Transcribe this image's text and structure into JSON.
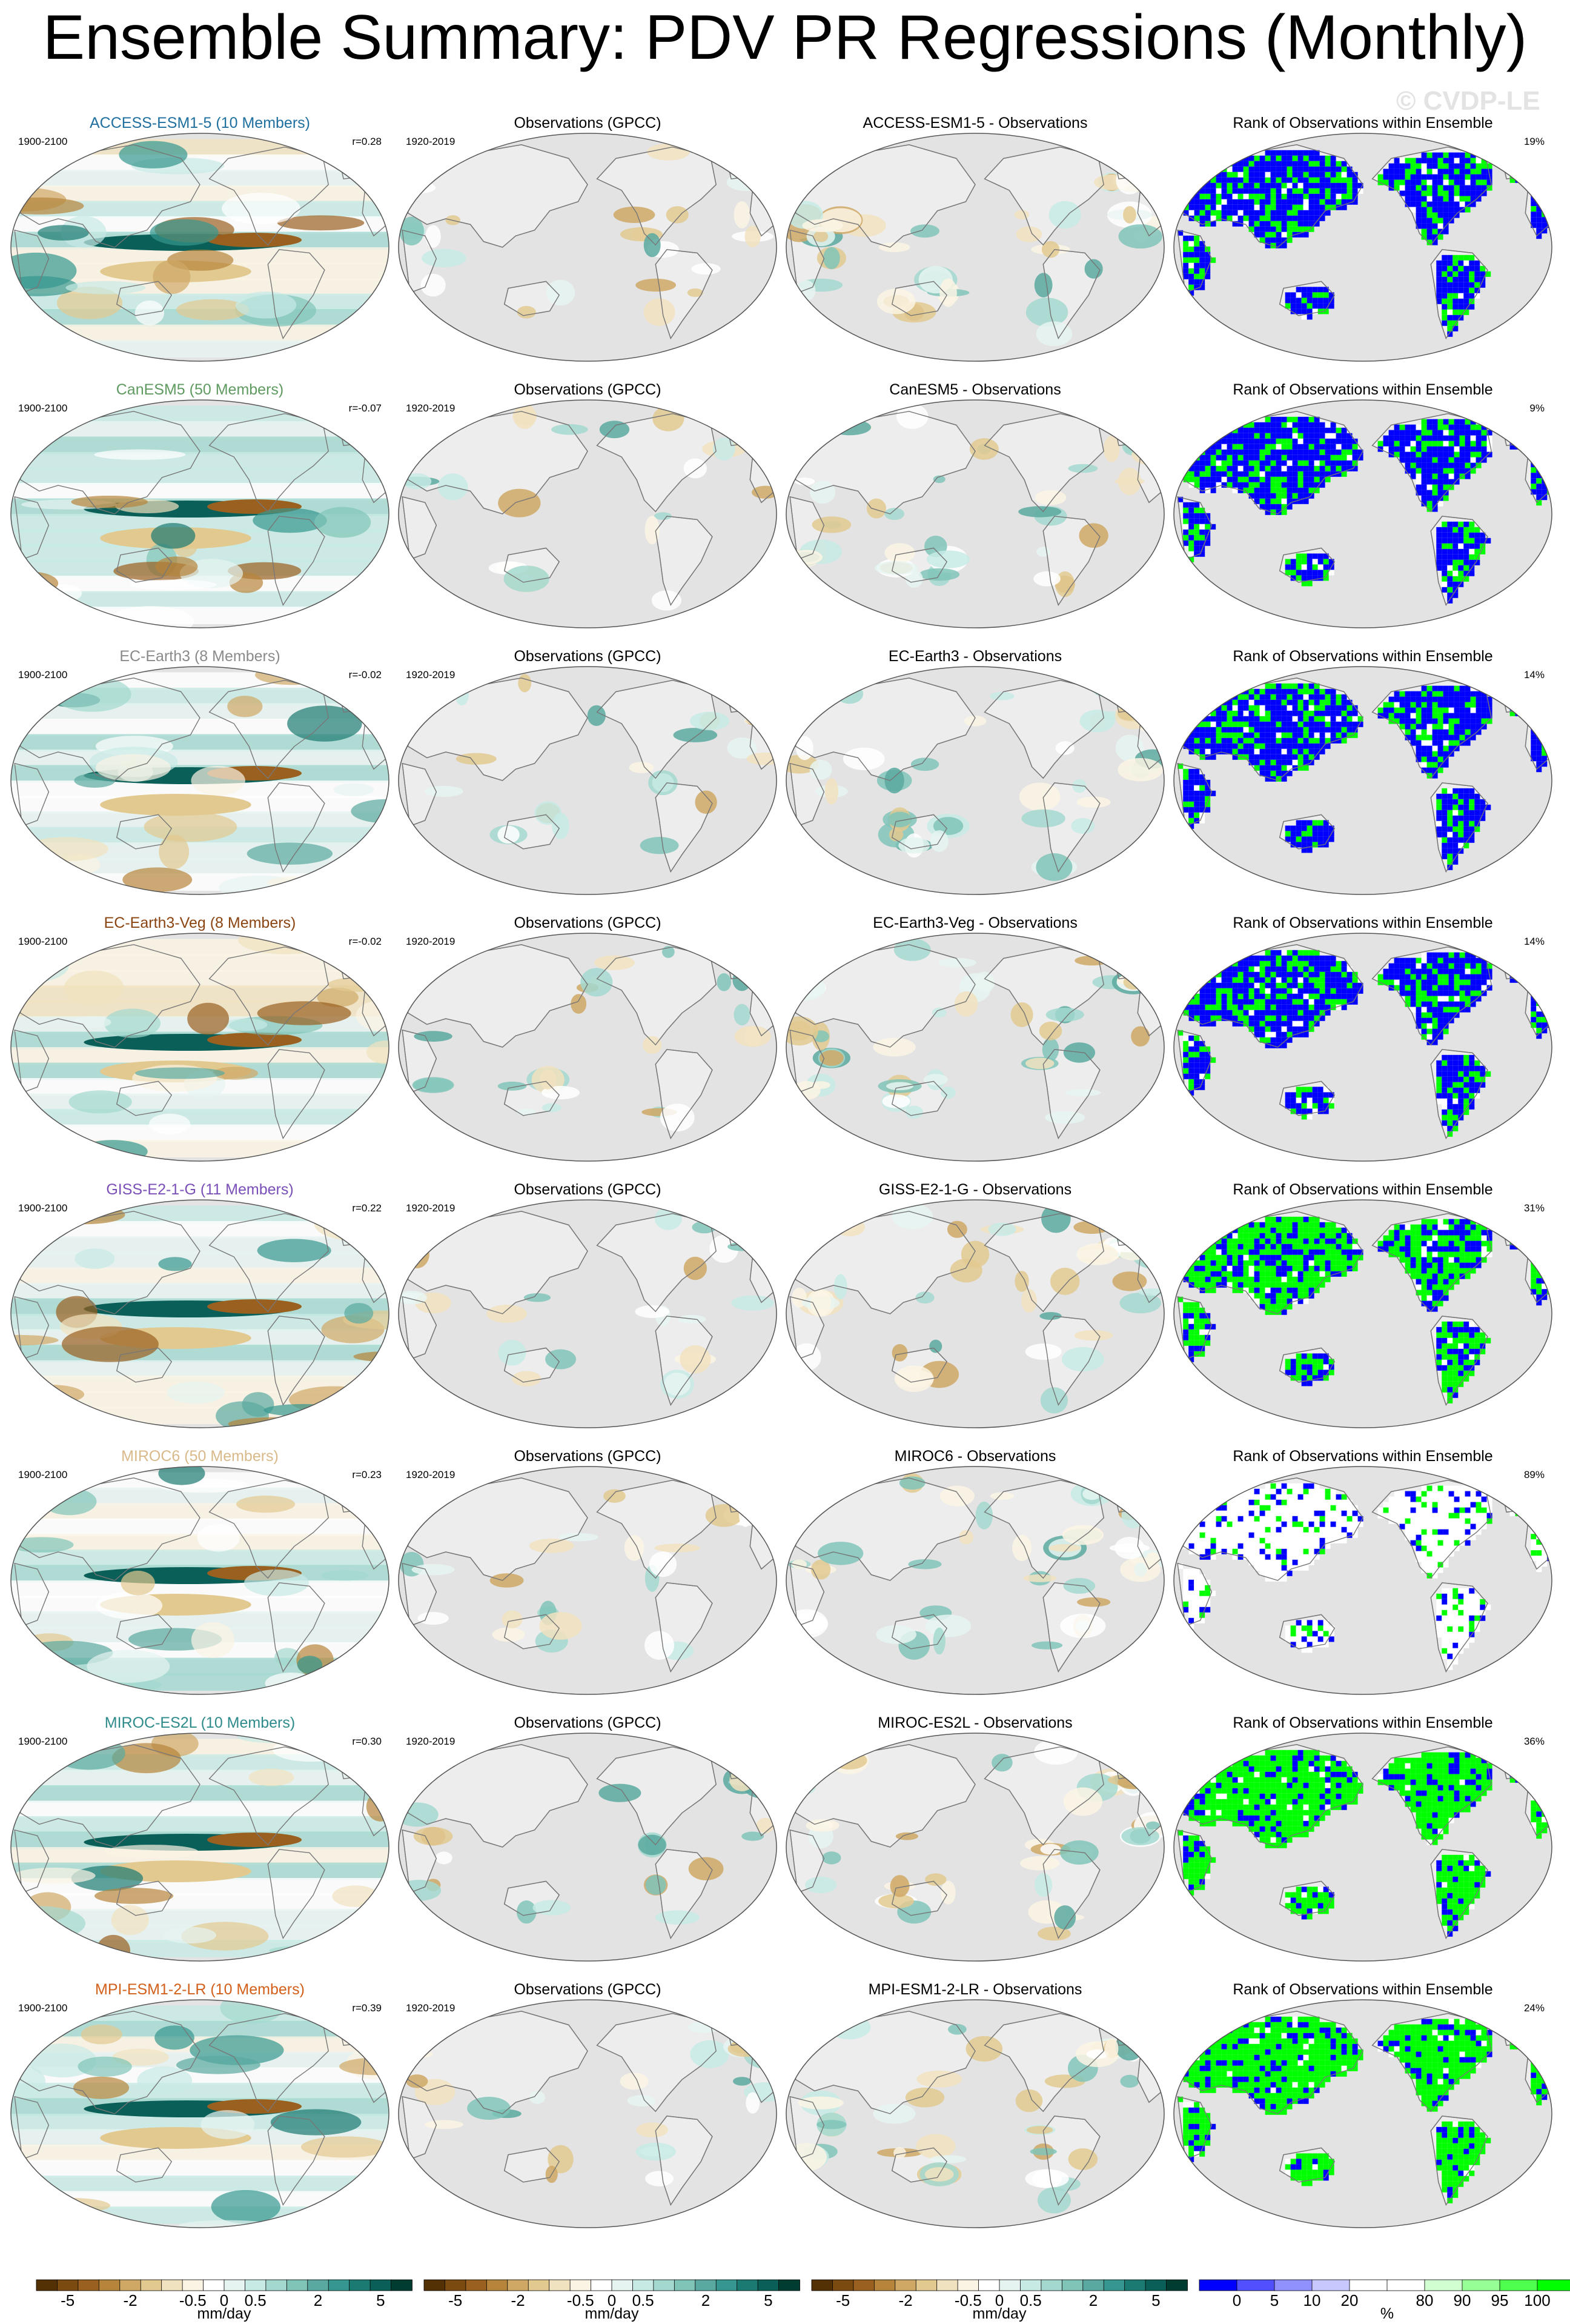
{
  "title": "Ensemble Summary: PDV PR Regressions (Monthly)",
  "copyright": "© CVDP-LE",
  "colors": {
    "ocean": "#e3e3e3",
    "land": "#ededed",
    "coast": "#777777",
    "rank_low": "#0000ff",
    "rank_high": "#00ff00"
  },
  "obs_title": "Observations (GPCC)",
  "obs_years": "1920-2019",
  "model_years": "1900-2100",
  "rank_title": "Rank of Observations within Ensemble",
  "rows": [
    {
      "model": "ACCESS-ESM1-5 (10 Members)",
      "model_color": "#1f6f9f",
      "r": "r=0.28",
      "diff_title": "ACCESS-ESM1-5 - Observations",
      "rank_pct": "19%",
      "rank_mode": "blue"
    },
    {
      "model": "CanESM5 (50 Members)",
      "model_color": "#5f9a60",
      "r": "r=-0.07",
      "diff_title": "CanESM5 - Observations",
      "rank_pct": "9%",
      "rank_mode": "blue"
    },
    {
      "model": "EC-Earth3 (8 Members)",
      "model_color": "#8a8a8a",
      "r": "r=-0.02",
      "diff_title": "EC-Earth3 - Observations",
      "rank_pct": "14%",
      "rank_mode": "blue"
    },
    {
      "model": "EC-Earth3-Veg (8 Members)",
      "model_color": "#8b4513",
      "r": "r=-0.02",
      "diff_title": "EC-Earth3-Veg - Observations",
      "rank_pct": "14%",
      "rank_mode": "blue"
    },
    {
      "model": "GISS-E2-1-G (11 Members)",
      "model_color": "#7a4fb8",
      "r": "r=0.22",
      "diff_title": "GISS-E2-1-G - Observations",
      "rank_pct": "31%",
      "rank_mode": "mixed"
    },
    {
      "model": "MIROC6 (50 Members)",
      "model_color": "#d9b98a",
      "r": "r=0.23",
      "diff_title": "MIROC6 - Observations",
      "rank_pct": "89%",
      "rank_mode": "white"
    },
    {
      "model": "MIROC-ES2L (10 Members)",
      "model_color": "#2f8b8b",
      "r": "r=0.30",
      "diff_title": "MIROC-ES2L - Observations",
      "rank_pct": "36%",
      "rank_mode": "green"
    },
    {
      "model": "MPI-ESM1-2-LR (10 Members)",
      "model_color": "#d2601a",
      "r": "r=0.39",
      "diff_title": "MPI-ESM1-2-LR - Observations",
      "rank_pct": "24%",
      "rank_mode": "green"
    }
  ],
  "pr_colorbar": {
    "colors": [
      "#543005",
      "#7a4a10",
      "#9a6020",
      "#b6843a",
      "#cfa866",
      "#e2c990",
      "#f1e2bf",
      "#fbf4e4",
      "#ffffff",
      "#e6f4f1",
      "#c7eae5",
      "#a3d8cf",
      "#80c4b8",
      "#5aa9a0",
      "#35978f",
      "#1b7a72",
      "#0a5f58",
      "#003c30"
    ],
    "ticks": [
      "-5",
      "-2",
      "-0.5",
      "0",
      "0.5",
      "2",
      "5"
    ],
    "units": "mm/day"
  },
  "rank_colorbar": {
    "colors": [
      "#0000ff",
      "#5050ff",
      "#9090ff",
      "#c8c8ff",
      "#ffffff",
      "#ffffff",
      "#d2ffd2",
      "#96ff96",
      "#4eff4e",
      "#00ff00"
    ],
    "ticks": [
      "0",
      "5",
      "10",
      "20",
      "80",
      "90",
      "95",
      "100"
    ],
    "units": "%"
  }
}
